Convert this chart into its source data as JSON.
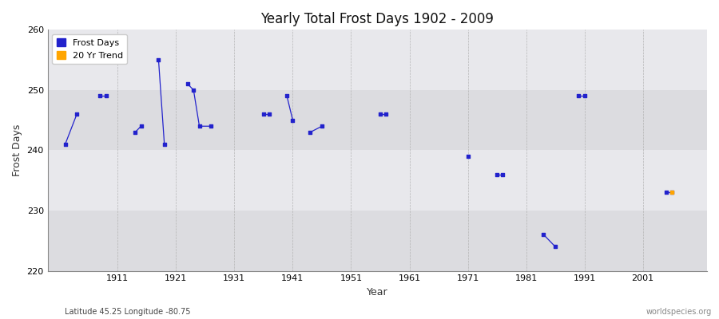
{
  "title": "Yearly Total Frost Days 1902 - 2009",
  "xlabel": "Year",
  "ylabel": "Frost Days",
  "ylim": [
    220,
    260
  ],
  "xlim": [
    1899,
    2012
  ],
  "background_color": "#ffffff",
  "plot_bg_color": "#e8e8eb",
  "frost_color": "#2222cc",
  "trend_color": "#ffa500",
  "footnote_left": "Latitude 45.25 Longitude -80.75",
  "footnote_right": "worldspecies.org",
  "yticks": [
    220,
    230,
    240,
    250,
    260
  ],
  "xticks": [
    1911,
    1921,
    1931,
    1941,
    1951,
    1961,
    1971,
    1981,
    1991,
    2001
  ],
  "band_colors": [
    "#dcdce0",
    "#e8e8ec"
  ],
  "groups": [
    {
      "years": [
        1902,
        1904
      ],
      "values": [
        241,
        246
      ]
    },
    {
      "years": [
        1908,
        1909
      ],
      "values": [
        249,
        249
      ]
    },
    {
      "years": [
        1914,
        1915
      ],
      "values": [
        243,
        244
      ]
    },
    {
      "years": [
        1918,
        1919
      ],
      "values": [
        255,
        241
      ]
    },
    {
      "years": [
        1923,
        1924,
        1925,
        1927
      ],
      "values": [
        251,
        250,
        244,
        244
      ]
    },
    {
      "years": [
        1936,
        1937
      ],
      "values": [
        246,
        246
      ]
    },
    {
      "years": [
        1940,
        1941
      ],
      "values": [
        249,
        245
      ]
    },
    {
      "years": [
        1944,
        1946
      ],
      "values": [
        243,
        244
      ]
    },
    {
      "years": [
        1956,
        1957
      ],
      "values": [
        246,
        246
      ]
    },
    {
      "years": [
        1971
      ],
      "values": [
        239
      ]
    },
    {
      "years": [
        1976,
        1977
      ],
      "values": [
        236,
        236
      ]
    },
    {
      "years": [
        1984,
        1986
      ],
      "values": [
        226,
        224
      ]
    },
    {
      "years": [
        1990,
        1991
      ],
      "values": [
        249,
        249
      ]
    },
    {
      "years": [
        2005,
        2006
      ],
      "values": [
        233,
        233
      ]
    }
  ],
  "trend_year": 2006,
  "trend_value": 233
}
